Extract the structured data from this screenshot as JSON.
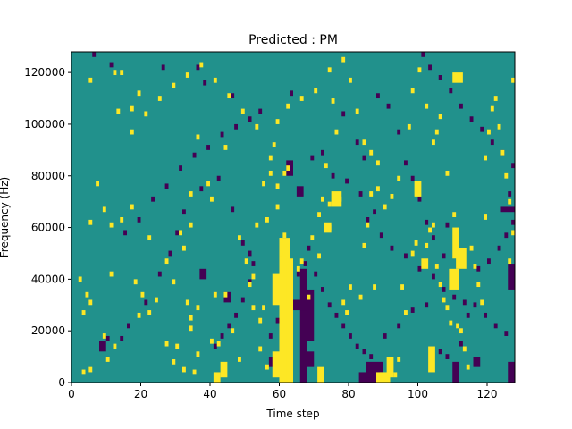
{
  "chart_data": {
    "type": "heatmap",
    "title": "Predicted : PM",
    "xlabel": "Time step",
    "ylabel": "Frequency (Hz)",
    "xlim": [
      0,
      128
    ],
    "ylim": [
      0,
      128000
    ],
    "x_ticks": [
      0,
      20,
      40,
      60,
      80,
      100,
      120
    ],
    "y_ticks": [
      0,
      20000,
      40000,
      60000,
      80000,
      100000,
      120000
    ],
    "x_tick_labels": [
      "0",
      "20",
      "40",
      "60",
      "80",
      "100",
      "120"
    ],
    "y_tick_labels": [
      "0",
      "20000",
      "40000",
      "60000",
      "80000",
      "100000",
      "120000"
    ],
    "grid": false,
    "colormap": "viridis",
    "background_level": "mid",
    "colors": {
      "low": "#440154",
      "mid": "#21918c",
      "high": "#fde725"
    },
    "bright_cells": [
      [
        5,
        116000
      ],
      [
        7,
        76000
      ],
      [
        9,
        66000
      ],
      [
        5,
        61000
      ],
      [
        11,
        60000
      ],
      [
        11,
        41000
      ],
      [
        2,
        39000
      ],
      [
        4,
        33000
      ],
      [
        5,
        30000
      ],
      [
        3,
        26000
      ],
      [
        9,
        17000
      ],
      [
        12,
        13000
      ],
      [
        10,
        8000
      ],
      [
        5,
        4000
      ],
      [
        3,
        3000
      ],
      [
        13,
        104000
      ],
      [
        17,
        105000
      ],
      [
        19,
        111000
      ],
      [
        12,
        119000
      ],
      [
        14,
        119000
      ],
      [
        14,
        62000
      ],
      [
        17,
        67000
      ],
      [
        22,
        55000
      ],
      [
        18,
        38000
      ],
      [
        20,
        33000
      ],
      [
        22,
        26000
      ],
      [
        19,
        25000
      ],
      [
        24,
        31000
      ],
      [
        27,
        14000
      ],
      [
        30,
        13000
      ],
      [
        29,
        7000
      ],
      [
        32,
        4000
      ],
      [
        35,
        3000
      ],
      [
        33,
        30000
      ],
      [
        34,
        24000
      ],
      [
        36,
        28000
      ],
      [
        34,
        20000
      ],
      [
        36,
        10000
      ],
      [
        31,
        57000
      ],
      [
        32,
        51000
      ],
      [
        34,
        60000
      ],
      [
        34,
        72000
      ],
      [
        36,
        94000
      ],
      [
        39,
        76000
      ],
      [
        40,
        70000
      ],
      [
        41,
        33000
      ],
      [
        40,
        15000
      ],
      [
        42,
        14000
      ],
      [
        44,
        90000
      ],
      [
        48,
        55000
      ],
      [
        50,
        46000
      ],
      [
        51,
        37000
      ],
      [
        52,
        28000
      ],
      [
        54,
        23000
      ],
      [
        55,
        28000
      ],
      [
        54,
        12000
      ],
      [
        56,
        5000
      ],
      [
        56,
        62000
      ],
      [
        57,
        80000
      ],
      [
        57,
        86000
      ],
      [
        59,
        67000
      ],
      [
        59,
        75000
      ],
      [
        60,
        54000
      ],
      [
        60,
        49000
      ],
      [
        61,
        56000
      ],
      [
        62,
        52000
      ],
      [
        63,
        40000
      ],
      [
        63,
        28000
      ],
      [
        61,
        80000
      ],
      [
        62,
        82000
      ],
      [
        65,
        43000
      ],
      [
        66,
        46000
      ],
      [
        68,
        32000
      ],
      [
        69,
        55000
      ],
      [
        71,
        64000
      ],
      [
        71,
        48000
      ],
      [
        72,
        70000
      ],
      [
        73,
        83000
      ],
      [
        74,
        68000
      ],
      [
        74,
        59000
      ],
      [
        75,
        108000
      ],
      [
        76,
        96000
      ],
      [
        77,
        70000
      ],
      [
        78,
        30000
      ],
      [
        79,
        26000
      ],
      [
        80,
        36000
      ],
      [
        83,
        32000
      ],
      [
        84,
        52000
      ],
      [
        85,
        60000
      ],
      [
        86,
        72000
      ],
      [
        87,
        36000
      ],
      [
        88,
        84000
      ],
      [
        89,
        2000
      ],
      [
        91,
        2000
      ],
      [
        93,
        2000
      ],
      [
        94,
        8000
      ],
      [
        95,
        36000
      ],
      [
        96,
        26000
      ],
      [
        98,
        49000
      ],
      [
        99,
        53000
      ],
      [
        102,
        52000
      ],
      [
        103,
        58000
      ],
      [
        104,
        60000
      ],
      [
        104,
        92000
      ],
      [
        105,
        96000
      ],
      [
        105,
        44000
      ],
      [
        106,
        37000
      ],
      [
        107,
        31000
      ],
      [
        108,
        28000
      ],
      [
        109,
        22000
      ],
      [
        111,
        21000
      ],
      [
        112,
        19000
      ],
      [
        113,
        12000
      ],
      [
        114,
        5000
      ],
      [
        115,
        51000
      ],
      [
        116,
        44000
      ],
      [
        117,
        37000
      ],
      [
        118,
        30000
      ],
      [
        119,
        63000
      ],
      [
        119,
        86000
      ],
      [
        120,
        96000
      ],
      [
        121,
        105000
      ],
      [
        122,
        109000
      ],
      [
        123,
        98000
      ],
      [
        124,
        88000
      ],
      [
        125,
        79000
      ],
      [
        126,
        69000
      ],
      [
        126,
        46000
      ],
      [
        127,
        57000
      ],
      [
        127,
        116000
      ],
      [
        90,
        67000
      ],
      [
        92,
        71000
      ],
      [
        94,
        78000
      ],
      [
        97,
        98000
      ],
      [
        98,
        112000
      ],
      [
        100,
        120000
      ],
      [
        102,
        106000
      ],
      [
        106,
        102000
      ],
      [
        108,
        80000
      ],
      [
        110,
        64000
      ],
      [
        27,
        46000
      ],
      [
        29,
        38000
      ],
      [
        44,
        33000
      ],
      [
        46,
        19000
      ],
      [
        48,
        8000
      ],
      [
        52,
        40000
      ],
      [
        53,
        60000
      ],
      [
        55,
        76000
      ],
      [
        58,
        91000
      ],
      [
        59,
        100000
      ],
      [
        62,
        106000
      ],
      [
        66,
        109000
      ],
      [
        70,
        112000
      ],
      [
        74,
        120000
      ],
      [
        78,
        124000
      ],
      [
        80,
        116000
      ],
      [
        82,
        104000
      ],
      [
        84,
        92000
      ],
      [
        86,
        88000
      ],
      [
        88,
        74000
      ],
      [
        17,
        96000
      ],
      [
        21,
        103000
      ],
      [
        25,
        109000
      ],
      [
        29,
        114000
      ],
      [
        33,
        118000
      ],
      [
        37,
        122000
      ],
      [
        41,
        116000
      ],
      [
        45,
        110000
      ],
      [
        49,
        104000
      ],
      [
        53,
        98000
      ]
    ],
    "bright_blocks": [
      [
        60,
        0,
        3,
        56000
      ],
      [
        62,
        0,
        2,
        48000
      ],
      [
        58,
        2000,
        2,
        10000
      ],
      [
        58,
        30000,
        2,
        12000
      ],
      [
        88,
        0,
        4,
        4000
      ],
      [
        91,
        2000,
        2,
        8000
      ],
      [
        109,
        36000,
        3,
        8000
      ],
      [
        111,
        44000,
        3,
        8000
      ],
      [
        110,
        48000,
        2,
        12000
      ],
      [
        103,
        4000,
        2,
        10000
      ],
      [
        71,
        0,
        2,
        6000
      ],
      [
        75,
        68000,
        3,
        6000
      ],
      [
        110,
        116000,
        3,
        4000
      ],
      [
        101,
        44000,
        2,
        4000
      ],
      [
        73,
        58000,
        2,
        4000
      ],
      [
        99,
        72000,
        2,
        6000
      ],
      [
        41,
        0,
        2,
        4000
      ],
      [
        43,
        2000,
        2,
        6000
      ]
    ],
    "dark_cells": [
      [
        6,
        126000
      ],
      [
        11,
        122000
      ],
      [
        26,
        121000
      ],
      [
        36,
        121000
      ],
      [
        38,
        115000
      ],
      [
        46,
        110000
      ],
      [
        54,
        104000
      ],
      [
        63,
        111000
      ],
      [
        78,
        103000
      ],
      [
        82,
        92000
      ],
      [
        84,
        86000
      ],
      [
        72,
        88000
      ],
      [
        69,
        86000
      ],
      [
        75,
        79000
      ],
      [
        79,
        77000
      ],
      [
        83,
        72000
      ],
      [
        87,
        65000
      ],
      [
        85,
        62000
      ],
      [
        89,
        56000
      ],
      [
        92,
        51000
      ],
      [
        96,
        48000
      ],
      [
        100,
        43000
      ],
      [
        104,
        40000
      ],
      [
        107,
        35000
      ],
      [
        110,
        32000
      ],
      [
        113,
        30000
      ],
      [
        116,
        29000
      ],
      [
        119,
        25000
      ],
      [
        122,
        21000
      ],
      [
        125,
        18000
      ],
      [
        10,
        16000
      ],
      [
        14,
        16000
      ],
      [
        16,
        21000
      ],
      [
        21,
        30000
      ],
      [
        25,
        41000
      ],
      [
        28,
        49000
      ],
      [
        30,
        57000
      ],
      [
        32,
        65000
      ],
      [
        37,
        74000
      ],
      [
        42,
        78000
      ],
      [
        46,
        66000
      ],
      [
        49,
        53000
      ],
      [
        51,
        49000
      ],
      [
        52,
        45000
      ],
      [
        51,
        38000
      ],
      [
        49,
        31000
      ],
      [
        47,
        25000
      ],
      [
        45,
        21000
      ],
      [
        43,
        17000
      ],
      [
        41,
        13000
      ],
      [
        57,
        17000
      ],
      [
        59,
        23000
      ],
      [
        61,
        29000
      ],
      [
        63,
        35000
      ],
      [
        65,
        41000
      ],
      [
        67,
        45000
      ],
      [
        68,
        51000
      ],
      [
        70,
        41000
      ],
      [
        72,
        35000
      ],
      [
        74,
        29000
      ],
      [
        76,
        25000
      ],
      [
        78,
        21000
      ],
      [
        80,
        17000
      ],
      [
        82,
        13000
      ],
      [
        84,
        11000
      ],
      [
        86,
        9000
      ],
      [
        90,
        17000
      ],
      [
        94,
        21000
      ],
      [
        98,
        27000
      ],
      [
        102,
        29000
      ],
      [
        106,
        11000
      ],
      [
        108,
        9000
      ],
      [
        112,
        14000
      ],
      [
        114,
        25000
      ],
      [
        117,
        43000
      ],
      [
        120,
        46000
      ],
      [
        123,
        51000
      ],
      [
        125,
        56000
      ],
      [
        127,
        61000
      ],
      [
        126,
        72000
      ],
      [
        127,
        83000
      ],
      [
        124,
        88000
      ],
      [
        121,
        92000
      ],
      [
        118,
        97000
      ],
      [
        115,
        101000
      ],
      [
        112,
        106000
      ],
      [
        109,
        112000
      ],
      [
        106,
        117000
      ],
      [
        103,
        121000
      ],
      [
        101,
        126000
      ],
      [
        88,
        110000
      ],
      [
        91,
        106000
      ],
      [
        94,
        96000
      ],
      [
        96,
        84000
      ],
      [
        98,
        78000
      ],
      [
        100,
        70000
      ],
      [
        102,
        61000
      ],
      [
        104,
        55000
      ],
      [
        107,
        48000
      ],
      [
        108,
        60000
      ],
      [
        15,
        57000
      ],
      [
        19,
        62000
      ],
      [
        23,
        70000
      ],
      [
        27,
        75000
      ],
      [
        31,
        82000
      ],
      [
        35,
        87000
      ],
      [
        39,
        90000
      ],
      [
        43,
        95000
      ],
      [
        47,
        98000
      ],
      [
        51,
        101000
      ]
    ],
    "dark_blocks": [
      [
        66,
        0,
        2,
        44000
      ],
      [
        68,
        16000,
        2,
        20000
      ],
      [
        64,
        28000,
        4,
        4000
      ],
      [
        83,
        0,
        6,
        4000
      ],
      [
        85,
        2000,
        3,
        6000
      ],
      [
        88,
        4000,
        2,
        4000
      ],
      [
        126,
        36000,
        2,
        10000
      ],
      [
        126,
        0,
        2,
        8000
      ],
      [
        124,
        66000,
        4,
        2000
      ],
      [
        44,
        31000,
        2,
        4000
      ],
      [
        110,
        0,
        2,
        8000
      ],
      [
        57,
        6000,
        2,
        4000
      ],
      [
        68,
        6000,
        2,
        6000
      ],
      [
        116,
        6000,
        2,
        4000
      ],
      [
        8,
        12000,
        2,
        4000
      ],
      [
        65,
        72000,
        2,
        4000
      ],
      [
        37,
        40000,
        2,
        4000
      ],
      [
        62,
        80000,
        2,
        6000
      ]
    ]
  }
}
